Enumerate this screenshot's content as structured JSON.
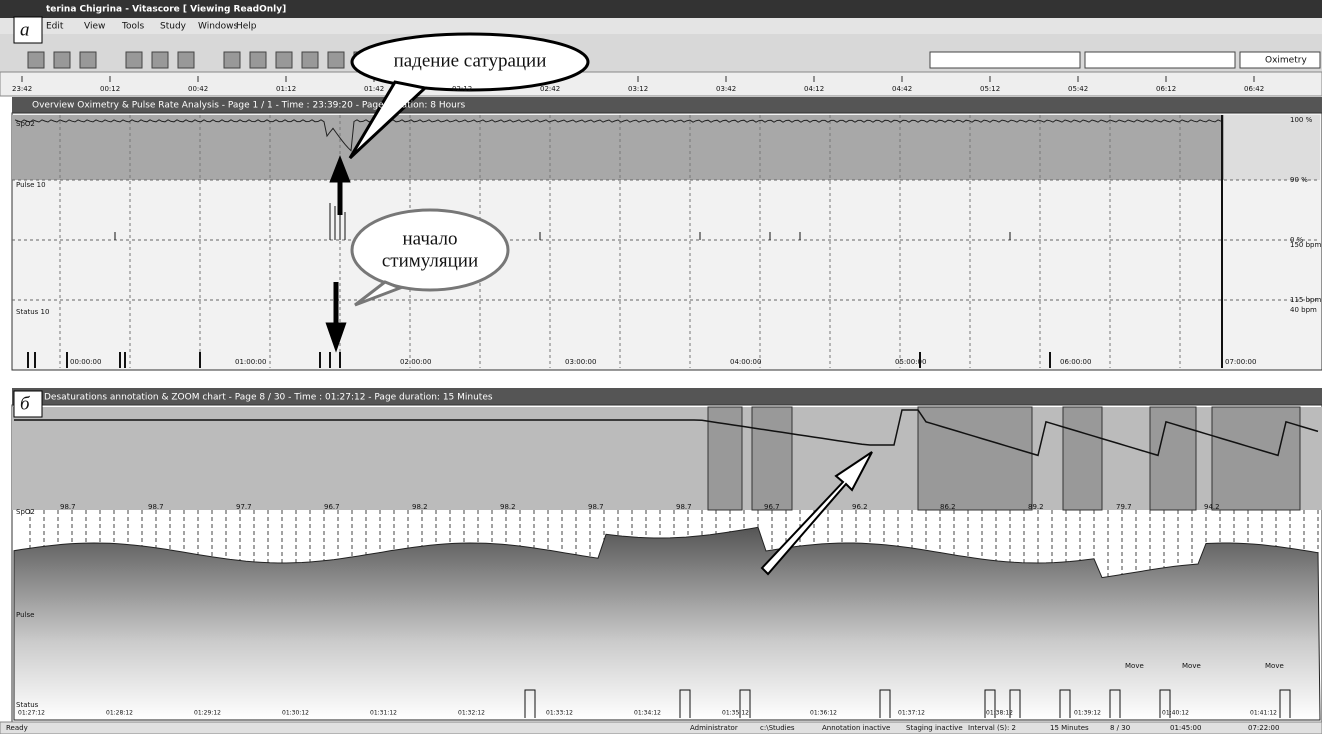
{
  "window": {
    "title": "terina Chigrina - Vitascore [ Viewing ReadOnly]",
    "menu": [
      "Edit",
      "View",
      "Tools",
      "Study",
      "Windows",
      "Help"
    ],
    "mode_select": "Oximetry"
  },
  "ruler": {
    "labels": [
      "23:42",
      "00:12",
      "00:42",
      "01:12",
      "01:42",
      "02:12",
      "02:42",
      "03:12",
      "03:42",
      "04:12",
      "04:42",
      "05:12",
      "05:42",
      "06:12",
      "06:42"
    ]
  },
  "panel_a": {
    "tag": "а",
    "title": "Overview Oximetry & Pulse Rate Analysis - Page 1 / 1 - Time : 23:39:20 - Page duration: 8 Hours",
    "left_labels": [
      "SpO2",
      "Pulse 10",
      "Status 10"
    ],
    "right_labels": [
      "100 %",
      "90 %",
      "0 %",
      "150 bpm",
      "115 bpm",
      "40 bpm"
    ],
    "time_labels": [
      "00:00:00",
      "01:00:00",
      "02:00:00",
      "03:00:00",
      "04:00:00",
      "05:00:00",
      "06:00:00",
      "07:00:00"
    ],
    "callout_desaturation": "падение сатурации",
    "callout_stimulation": [
      "начало",
      "стимуляции"
    ]
  },
  "panel_b": {
    "tag": "б",
    "title": "Desaturations annotation & ZOOM chart - Page 8 / 30 - Time : 01:27:12 - Page duration: 15 Minutes",
    "left_labels": [
      "SpO2",
      "Pulse",
      "Status"
    ],
    "spo2_labels": [
      "98.7",
      "98.7",
      "97.7",
      "96.7",
      "98.2",
      "98.2",
      "98.7",
      "98.7",
      "96.7",
      "96.2",
      "86.2",
      "89.2",
      "79.7",
      "94.2"
    ],
    "event_labels": [
      "Move",
      "Move",
      "Move"
    ],
    "time_labels": [
      "01:27:12",
      "01:28:12",
      "01:29:12",
      "01:30:12",
      "01:31:12",
      "01:32:12",
      "01:33:12",
      "01:34:12",
      "01:35:12",
      "01:36:12",
      "01:37:12",
      "01:38:12",
      "01:39:12",
      "01:40:12",
      "01:41:12"
    ]
  },
  "status_bar": [
    "Ready",
    "Administrator",
    "c:\\Studies",
    "Annotation inactive",
    "Staging inactive",
    "Interval (S): 2",
    "15 Minutes",
    "8 / 30",
    "01:45:00",
    "07:22:00"
  ]
}
